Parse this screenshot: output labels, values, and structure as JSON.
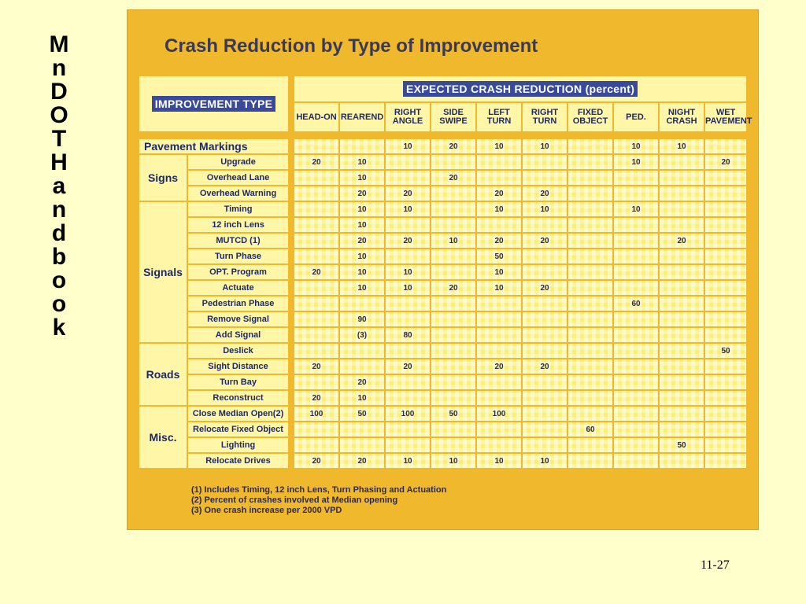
{
  "side_title": [
    "M",
    "n",
    "D",
    "O",
    "T",
    "H",
    "a",
    "n",
    "d",
    "b",
    "o",
    "o",
    "k"
  ],
  "title": "Crash Reduction by Type of Improvement",
  "header": {
    "improvement_type": "IMPROVEMENT TYPE",
    "expected": "EXPECTED CRASH REDUCTION (percent)",
    "columns": [
      {
        "l1": "HEAD-ON",
        "l2": ""
      },
      {
        "l1": "REAREND",
        "l2": ""
      },
      {
        "l1": "RIGHT",
        "l2": "ANGLE"
      },
      {
        "l1": "SIDE",
        "l2": "SWIPE"
      },
      {
        "l1": "LEFT",
        "l2": "TURN"
      },
      {
        "l1": "RIGHT",
        "l2": "TURN"
      },
      {
        "l1": "FIXED",
        "l2": "OBJECT"
      },
      {
        "l1": "PED.",
        "l2": ""
      },
      {
        "l1": "NIGHT",
        "l2": "CRASH"
      },
      {
        "l1": "WET",
        "l2": "PAVEMENT"
      }
    ]
  },
  "groups": [
    {
      "category": "Pavement Markings",
      "rows": [
        {
          "label": "",
          "values": [
            "",
            "",
            "10",
            "20",
            "10",
            "10",
            "",
            "10",
            "10",
            ""
          ]
        }
      ]
    },
    {
      "category": "Signs",
      "rows": [
        {
          "label": "Upgrade",
          "values": [
            "20",
            "10",
            "",
            "",
            "",
            "",
            "",
            "10",
            "",
            "20"
          ]
        },
        {
          "label": "Overhead Lane",
          "values": [
            "",
            "10",
            "",
            "20",
            "",
            "",
            "",
            "",
            "",
            ""
          ]
        },
        {
          "label": "Overhead Warning",
          "values": [
            "",
            "20",
            "20",
            "",
            "20",
            "20",
            "",
            "",
            "",
            ""
          ]
        }
      ]
    },
    {
      "category": "Signals",
      "rows": [
        {
          "label": "Timing",
          "values": [
            "",
            "10",
            "10",
            "",
            "10",
            "10",
            "",
            "10",
            "",
            ""
          ]
        },
        {
          "label": "12 inch Lens",
          "values": [
            "",
            "10",
            "",
            "",
            "",
            "",
            "",
            "",
            "",
            ""
          ]
        },
        {
          "label": "MUTCD (1)",
          "values": [
            "",
            "20",
            "20",
            "10",
            "20",
            "20",
            "",
            "",
            "20",
            ""
          ]
        },
        {
          "label": "Turn Phase",
          "values": [
            "",
            "10",
            "",
            "",
            "50",
            "",
            "",
            "",
            "",
            ""
          ]
        },
        {
          "label": "OPT. Program",
          "values": [
            "20",
            "10",
            "10",
            "",
            "10",
            "",
            "",
            "",
            "",
            ""
          ]
        },
        {
          "label": "Actuate",
          "values": [
            "",
            "10",
            "10",
            "20",
            "10",
            "20",
            "",
            "",
            "",
            ""
          ]
        },
        {
          "label": "Pedestrian Phase",
          "values": [
            "",
            "",
            "",
            "",
            "",
            "",
            "",
            "60",
            "",
            ""
          ]
        },
        {
          "label": "Remove Signal",
          "values": [
            "",
            "90",
            "",
            "",
            "",
            "",
            "",
            "",
            "",
            ""
          ]
        },
        {
          "label": "Add Signal",
          "values": [
            "",
            "(3)",
            "80",
            "",
            "",
            "",
            "",
            "",
            "",
            ""
          ]
        }
      ]
    },
    {
      "category": "Roads",
      "rows": [
        {
          "label": "Deslick",
          "values": [
            "",
            "",
            "",
            "",
            "",
            "",
            "",
            "",
            "",
            "50"
          ]
        },
        {
          "label": "Sight Distance",
          "values": [
            "20",
            "",
            "20",
            "",
            "20",
            "20",
            "",
            "",
            "",
            ""
          ]
        },
        {
          "label": "Turn Bay",
          "values": [
            "",
            "20",
            "",
            "",
            "",
            "",
            "",
            "",
            "",
            ""
          ]
        },
        {
          "label": "Reconstruct",
          "values": [
            "20",
            "10",
            "",
            "",
            "",
            "",
            "",
            "",
            "",
            ""
          ]
        }
      ]
    },
    {
      "category": "Misc.",
      "rows": [
        {
          "label": "Close Median Open(2)",
          "values": [
            "100",
            "50",
            "100",
            "50",
            "100",
            "",
            "",
            "",
            "",
            ""
          ]
        },
        {
          "label": "Relocate Fixed Object",
          "values": [
            "",
            "",
            "",
            "",
            "",
            "",
            "60",
            "",
            "",
            ""
          ]
        },
        {
          "label": "Lighting",
          "values": [
            "",
            "",
            "",
            "",
            "",
            "",
            "",
            "",
            "50",
            ""
          ]
        },
        {
          "label": "Relocate Drives",
          "values": [
            "20",
            "20",
            "10",
            "10",
            "10",
            "10",
            "",
            "",
            "",
            ""
          ]
        }
      ]
    }
  ],
  "footnotes": [
    "(1)  Includes Timing, 12 inch Lens, Turn Phasing and Actuation",
    "(2)  Percent of crashes involved at Median opening",
    "(3)  One crash increase per 2000 VPD"
  ],
  "page_number": "11-27"
}
